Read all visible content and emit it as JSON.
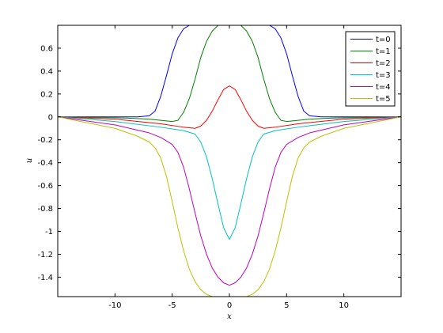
{
  "chart_data": {
    "type": "line",
    "title": "",
    "xlabel": "x",
    "ylabel": "u",
    "xlim": [
      -15,
      15
    ],
    "ylim": [
      -1.57,
      0.8
    ],
    "grid": false,
    "legend_position": "top-right",
    "xticks": [
      -10,
      -5,
      0,
      5,
      10
    ],
    "xtick_labels": [
      "-10",
      "-5",
      "0",
      "5",
      "10"
    ],
    "yticks": [
      0.6,
      0.4,
      0.2,
      0,
      -0.2,
      -0.4,
      -0.6,
      -0.8,
      -1,
      -1.2,
      -1.4
    ],
    "ytick_labels": [
      "0.6",
      "0.4",
      "0.2",
      "0",
      "-0.2",
      "-0.4",
      "-0.6",
      "-0.8",
      "-1",
      "-1.2",
      "-1.4"
    ],
    "series": [
      {
        "name": "t=0",
        "color": "#0000ff",
        "x": [
          -15,
          -8,
          -7,
          -6.5,
          -6,
          -5.5,
          -5,
          -4.5,
          -4,
          -3.5,
          -3,
          3,
          3.5,
          4,
          4.5,
          5,
          5.5,
          6,
          6.5,
          7,
          8,
          15
        ],
        "y": [
          0,
          0,
          0.01,
          0.05,
          0.18,
          0.36,
          0.55,
          0.69,
          0.77,
          0.8,
          0.8,
          0.8,
          0.8,
          0.77,
          0.69,
          0.55,
          0.36,
          0.18,
          0.05,
          0.01,
          0,
          0
        ]
      },
      {
        "name": "t=1",
        "color": "#008000",
        "x": [
          -15,
          -9,
          -7,
          -6,
          -5,
          -4.5,
          -4,
          -3.5,
          -3,
          -2.5,
          -2,
          -1.5,
          -1,
          1,
          1.5,
          2,
          2.5,
          3,
          3.5,
          4,
          4.5,
          5,
          6,
          7,
          9,
          15
        ],
        "y": [
          0,
          -0.01,
          -0.02,
          -0.03,
          -0.04,
          -0.03,
          0.04,
          0.16,
          0.33,
          0.52,
          0.66,
          0.75,
          0.8,
          0.8,
          0.75,
          0.66,
          0.52,
          0.33,
          0.16,
          0.04,
          -0.03,
          -0.04,
          -0.03,
          -0.02,
          -0.01,
          0
        ]
      },
      {
        "name": "t=2",
        "color": "#ff0000",
        "x": [
          -15,
          -10,
          -6,
          -4,
          -3,
          -2.5,
          -2,
          -1.5,
          -1,
          -0.5,
          0,
          0.5,
          1,
          1.5,
          2,
          2.5,
          3,
          4,
          6,
          10,
          15
        ],
        "y": [
          0,
          -0.02,
          -0.06,
          -0.09,
          -0.1,
          -0.08,
          -0.03,
          0.05,
          0.15,
          0.24,
          0.27,
          0.24,
          0.15,
          0.05,
          -0.03,
          -0.08,
          -0.1,
          -0.09,
          -0.06,
          -0.02,
          0
        ]
      },
      {
        "name": "t=3",
        "color": "#00bfbf",
        "x": [
          -15,
          -10,
          -6,
          -4,
          -3,
          -2.5,
          -2,
          -1.5,
          -1,
          -0.5,
          0,
          0.5,
          1,
          1.5,
          2,
          2.5,
          3,
          4,
          6,
          10,
          15
        ],
        "y": [
          0,
          -0.04,
          -0.09,
          -0.12,
          -0.15,
          -0.22,
          -0.35,
          -0.54,
          -0.76,
          -0.97,
          -1.07,
          -0.97,
          -0.76,
          -0.54,
          -0.35,
          -0.22,
          -0.15,
          -0.12,
          -0.09,
          -0.04,
          0
        ]
      },
      {
        "name": "t=4",
        "color": "#bf00bf",
        "x": [
          -15,
          -10,
          -7,
          -6,
          -5,
          -4.5,
          -4,
          -3.5,
          -3,
          -2.5,
          -2,
          -1.5,
          -1,
          -0.5,
          0,
          0.5,
          1,
          1.5,
          2,
          2.5,
          3,
          3.5,
          4,
          4.5,
          5,
          6,
          7,
          10,
          15
        ],
        "y": [
          0,
          -0.07,
          -0.14,
          -0.18,
          -0.24,
          -0.31,
          -0.44,
          -0.63,
          -0.84,
          -1.04,
          -1.2,
          -1.32,
          -1.4,
          -1.45,
          -1.47,
          -1.45,
          -1.4,
          -1.32,
          -1.2,
          -1.04,
          -0.84,
          -0.63,
          -0.44,
          -0.31,
          -0.24,
          -0.18,
          -0.14,
          -0.07,
          0
        ]
      },
      {
        "name": "t=5",
        "color": "#bfbf00",
        "x": [
          -15,
          -10,
          -8,
          -7,
          -6.5,
          -6,
          -5.5,
          -5,
          -4.5,
          -4,
          -3.5,
          -3,
          -2.5,
          -2,
          -1.5,
          1.5,
          2,
          2.5,
          3,
          3.5,
          4,
          4.5,
          5,
          5.5,
          6,
          6.5,
          7,
          8,
          10,
          15
        ],
        "y": [
          0,
          -0.1,
          -0.17,
          -0.22,
          -0.27,
          -0.36,
          -0.52,
          -0.74,
          -0.97,
          -1.17,
          -1.33,
          -1.44,
          -1.51,
          -1.55,
          -1.57,
          -1.57,
          -1.55,
          -1.51,
          -1.44,
          -1.33,
          -1.17,
          -0.97,
          -0.74,
          -0.52,
          -0.36,
          -0.27,
          -0.22,
          -0.17,
          -0.1,
          0
        ]
      }
    ]
  }
}
